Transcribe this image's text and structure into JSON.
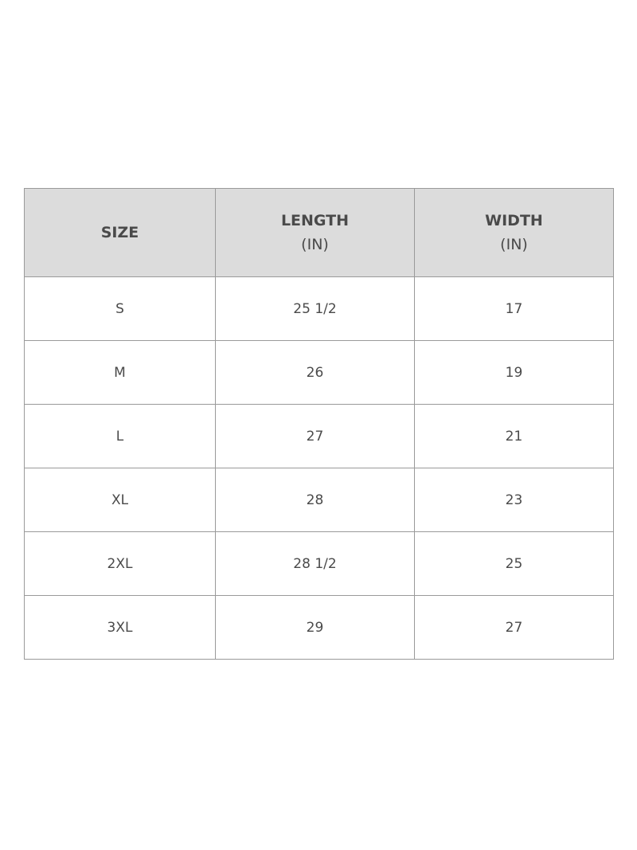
{
  "table": {
    "header": [
      {
        "title": "SIZE"
      },
      {
        "title": "LENGTH",
        "unit": "(IN)"
      },
      {
        "title": "WIDTH",
        "unit": "(IN)"
      }
    ],
    "rows": [
      [
        "S",
        "25 1/2",
        "17"
      ],
      [
        "M",
        "26",
        "19"
      ],
      [
        "L",
        "27",
        "21"
      ],
      [
        "XL",
        "28",
        "23"
      ],
      [
        "2XL",
        "28 1/2",
        "25"
      ],
      [
        "3XL",
        "29",
        "27"
      ]
    ]
  }
}
